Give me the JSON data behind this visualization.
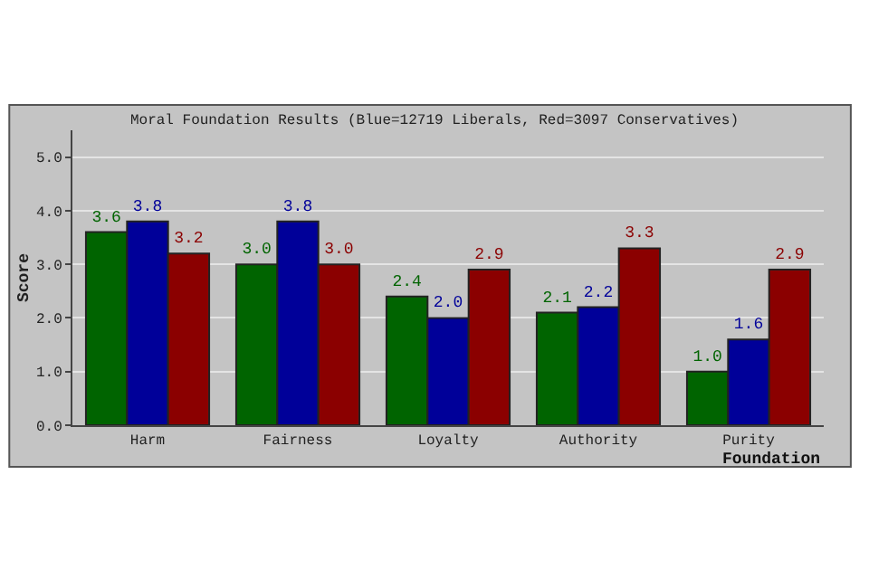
{
  "chart_data": {
    "type": "bar",
    "title": "Moral Foundation Results (Blue=12719 Liberals, Red=3097 Conservatives)",
    "xlabel": "Foundation",
    "ylabel": "Score",
    "categories": [
      "Harm",
      "Fairness",
      "Loyalty",
      "Authority",
      "Purity"
    ],
    "series": [
      {
        "color": "#006400",
        "values": [
          3.6,
          3.0,
          2.4,
          2.1,
          1.0
        ],
        "value_labels": [
          "3.6",
          "3.0",
          "2.4",
          "2.1",
          "1.0"
        ]
      },
      {
        "color": "#000099",
        "values": [
          3.8,
          3.8,
          2.0,
          2.2,
          1.6
        ],
        "value_labels": [
          "3.8",
          "3.8",
          "2.0",
          "2.2",
          "1.6"
        ]
      },
      {
        "color": "#8b0000",
        "values": [
          3.2,
          3.0,
          2.9,
          3.3,
          2.9
        ],
        "value_labels": [
          "3.2",
          "3.0",
          "2.9",
          "3.3",
          "2.9"
        ]
      }
    ],
    "ylim": [
      0,
      5.5
    ],
    "yticks": [
      {
        "value": 0,
        "label": "0.0"
      },
      {
        "value": 1,
        "label": "1.0"
      },
      {
        "value": 2,
        "label": "2.0"
      },
      {
        "value": 3,
        "label": "3.0"
      },
      {
        "value": 4,
        "label": "4.0"
      },
      {
        "value": 5,
        "label": "5.0"
      }
    ],
    "grid": "y",
    "legend": false
  }
}
